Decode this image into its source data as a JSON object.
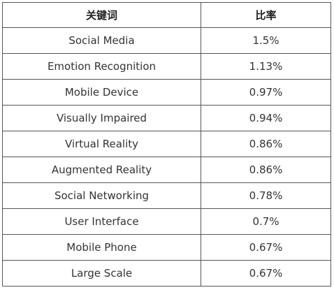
{
  "table": {
    "headers": [
      "关键词",
      "比率"
    ],
    "rows": [
      [
        "Social Media",
        "1.5%"
      ],
      [
        "Emotion Recognition",
        "1.13%"
      ],
      [
        "Mobile Device",
        "0.97%"
      ],
      [
        "Visually Impaired",
        "0.94%"
      ],
      [
        "Virtual Reality",
        "0.86%"
      ],
      [
        "Augmented Reality",
        "0.86%"
      ],
      [
        "Social Networking",
        "0.78%"
      ],
      [
        "User Interface",
        "0.7%"
      ],
      [
        "Mobile Phone",
        "0.67%"
      ],
      [
        "Large Scale",
        "0.67%"
      ]
    ]
  }
}
